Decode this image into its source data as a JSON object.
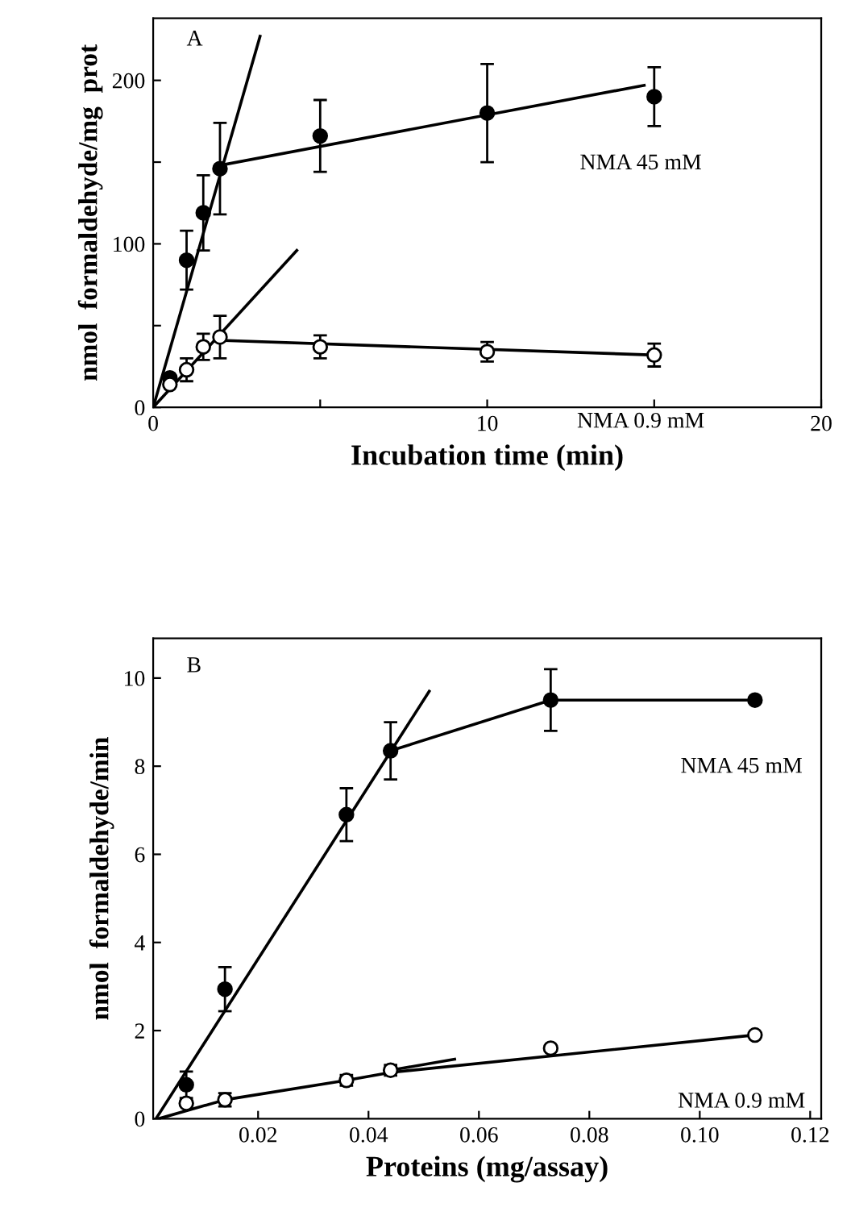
{
  "chart_data": [
    {
      "type": "scatter",
      "xlabel": "Incubation time (min)",
      "ylabel": "nmol  formaldehyde/mg  prot",
      "xlim": [
        0,
        20
      ],
      "ylim": [
        0,
        238
      ],
      "xticks": [
        0,
        {
          "value": 5,
          "label": null
        },
        10,
        {
          "value": 15,
          "label": null
        },
        20
      ],
      "yticks": [
        0,
        {
          "value": 50,
          "label": null
        },
        100,
        {
          "value": 150,
          "label": null
        },
        200
      ],
      "grid": false,
      "legend": false,
      "annotations": [
        "A"
      ],
      "series": [
        {
          "type": "scatter",
          "name": "NMA 45 mM",
          "marker": "circle",
          "color": "#000000",
          "x": [
            0.5,
            1,
            1.5,
            2,
            5,
            10,
            15
          ],
          "values": [
            18,
            90,
            119,
            146,
            166,
            180,
            190
          ],
          "errors": [
            null,
            18,
            23,
            28,
            22,
            30,
            18
          ]
        },
        {
          "type": "scatter",
          "name": "NMA 0.9 mM",
          "marker": "open circle",
          "color": "#000000",
          "x": [
            0.5,
            1,
            1.5,
            2,
            5,
            10,
            15
          ],
          "values": [
            14,
            23,
            37,
            43,
            37,
            34,
            32
          ],
          "errors": [
            null,
            7,
            8,
            13,
            7,
            6,
            7
          ]
        },
        {
          "type": "line",
          "marker": "none",
          "color": "#000000",
          "x": [
            0,
            3.2
          ],
          "values": [
            0,
            227
          ]
        },
        {
          "type": "line",
          "marker": "none",
          "color": "#000000",
          "x": [
            2,
            14.7
          ],
          "values": [
            148,
            197
          ]
        },
        {
          "type": "line",
          "marker": "none",
          "color": "#000000",
          "x": [
            0,
            4.3
          ],
          "values": [
            0,
            96
          ]
        },
        {
          "type": "line",
          "marker": "none",
          "color": "#000000",
          "x": [
            2,
            15
          ],
          "values": [
            41,
            32
          ]
        }
      ]
    },
    {
      "type": "scatter",
      "xlabel": "Proteins (mg/assay)",
      "ylabel": "nmol  formaldehyde/min",
      "xlim": [
        0.001,
        0.122
      ],
      "ylim": [
        0,
        10.9
      ],
      "xticks": [
        0.02,
        0.04,
        0.06,
        0.08,
        {
          "value": 0.1,
          "label": "0.10"
        },
        0.12
      ],
      "yticks": [
        0,
        2,
        4,
        6,
        8,
        10
      ],
      "grid": false,
      "legend": false,
      "annotations": [
        "B"
      ],
      "series": [
        {
          "type": "scatter",
          "name": "NMA 45 mM",
          "marker": "circle",
          "color": "#000000",
          "x": [
            0.007,
            0.014,
            0.036,
            0.044,
            0.073,
            0.11
          ],
          "values": [
            0.77,
            2.94,
            6.9,
            8.35,
            9.5,
            9.5
          ],
          "errors": [
            0.3,
            0.5,
            0.6,
            0.65,
            0.7,
            null
          ]
        },
        {
          "type": "scatter",
          "name": "NMA 0.9 mM",
          "marker": "open circle",
          "color": "#000000",
          "x": [
            0.007,
            0.014,
            0.036,
            0.044,
            0.073,
            0.11
          ],
          "values": [
            0.35,
            0.43,
            0.87,
            1.1,
            1.6,
            1.9
          ],
          "errors": [
            null,
            0.15,
            0.12,
            0.12,
            null,
            null
          ]
        },
        {
          "type": "line",
          "marker": "none",
          "color": "#000000",
          "x": [
            0.0015,
            0.051
          ],
          "values": [
            0,
            9.7
          ]
        },
        {
          "type": "line",
          "marker": "none",
          "color": "#000000",
          "x": [
            0.044,
            0.073,
            0.11
          ],
          "values": [
            8.35,
            9.5,
            9.5
          ]
        },
        {
          "type": "line",
          "marker": "none",
          "color": "#000000",
          "x": [
            0.002,
            0.014,
            0.036,
            0.044,
            0.11
          ],
          "values": [
            0,
            0.43,
            0.87,
            1.05,
            1.9
          ]
        },
        {
          "type": "line",
          "marker": "none",
          "color": "#000000",
          "x": [
            0.044,
            0.0556
          ],
          "values": [
            1.1,
            1.35
          ]
        }
      ]
    }
  ]
}
